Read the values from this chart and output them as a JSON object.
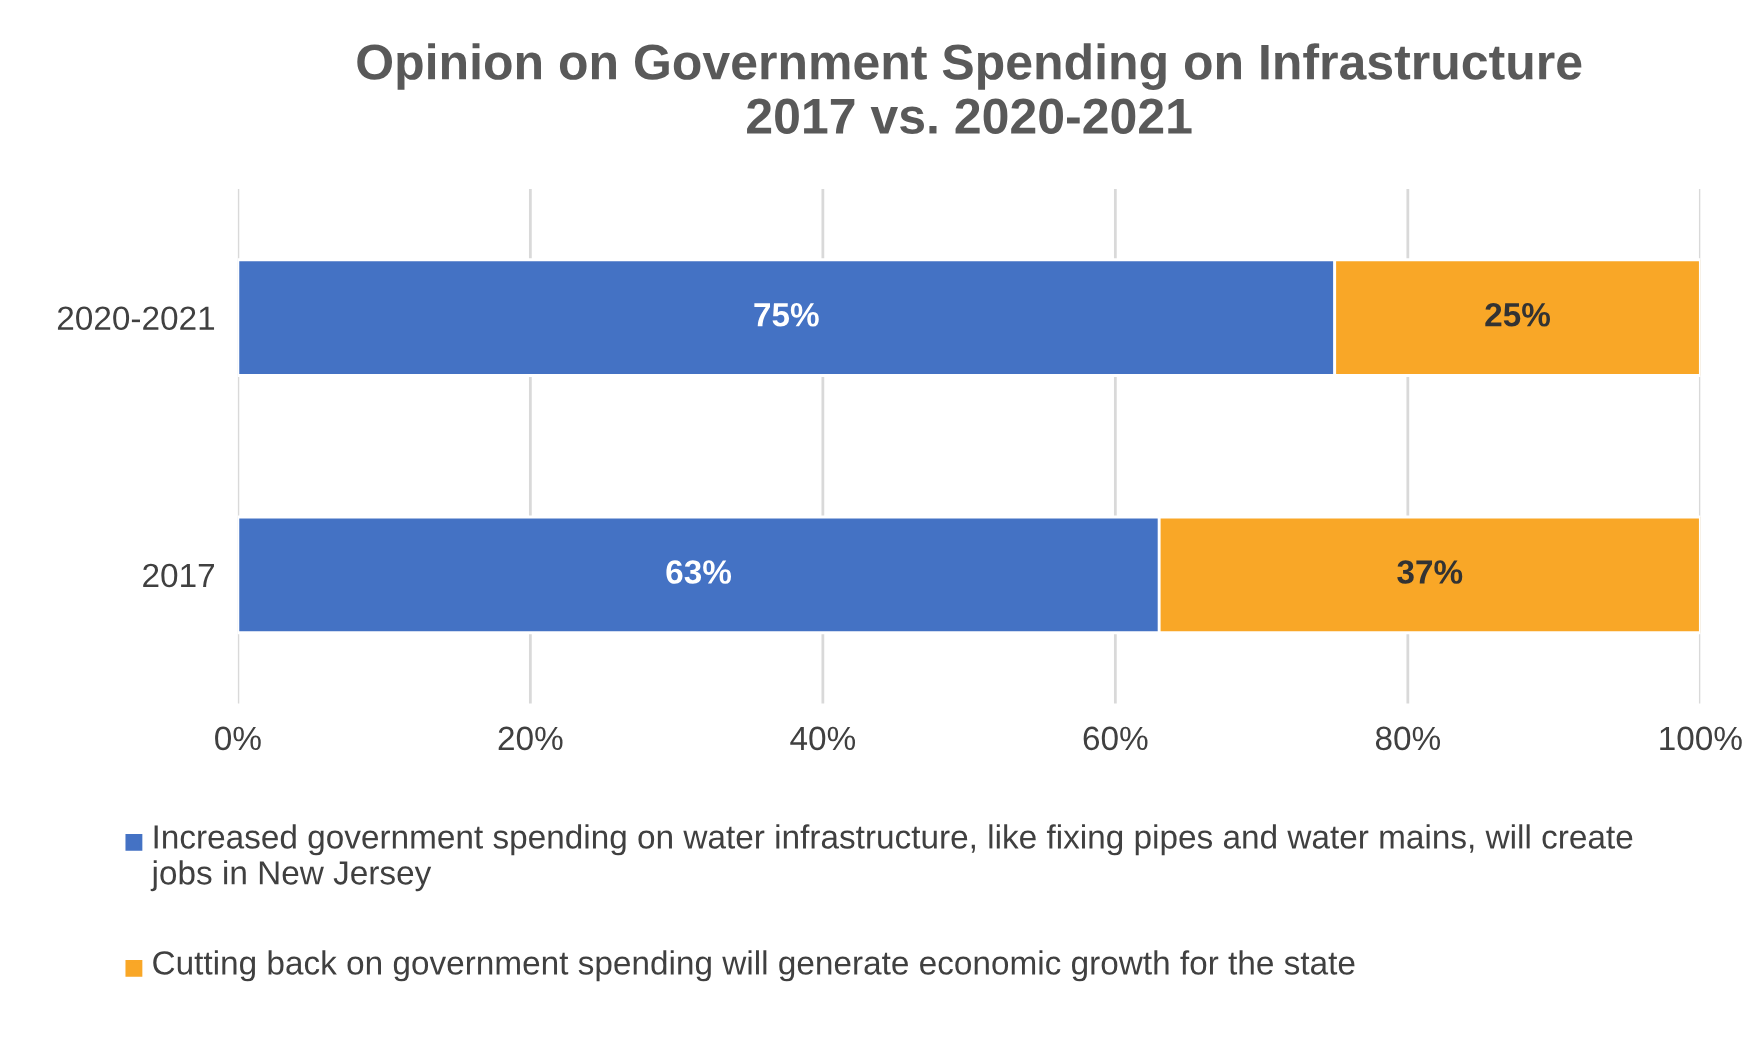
{
  "chart_data": {
    "type": "bar",
    "orientation": "horizontal",
    "stacked": true,
    "title": "Opinion on Government Spending on Infrastructure\n2017 vs. 2020-2021",
    "categories": [
      "2020-2021",
      "2017"
    ],
    "series": [
      {
        "name": "Increased government spending on water infrastructure, like fixing pipes and water mains, will create jobs in New Jersey",
        "color": "#4472c4",
        "values": [
          75,
          63
        ],
        "value_labels": [
          "75%",
          "63%"
        ]
      },
      {
        "name": "Cutting back on government spending will generate economic growth for the state",
        "color": "#f9a727",
        "values": [
          25,
          37
        ],
        "value_labels": [
          "25%",
          "37%"
        ]
      }
    ],
    "xlim": [
      0,
      100
    ],
    "xticks": [
      {
        "value": 0,
        "label": "0%"
      },
      {
        "value": 20,
        "label": "20%"
      },
      {
        "value": 40,
        "label": "40%"
      },
      {
        "value": 60,
        "label": "60%"
      },
      {
        "value": 80,
        "label": "80%"
      },
      {
        "value": 100,
        "label": "100%"
      }
    ],
    "grid": "x",
    "legend": "bottom"
  }
}
